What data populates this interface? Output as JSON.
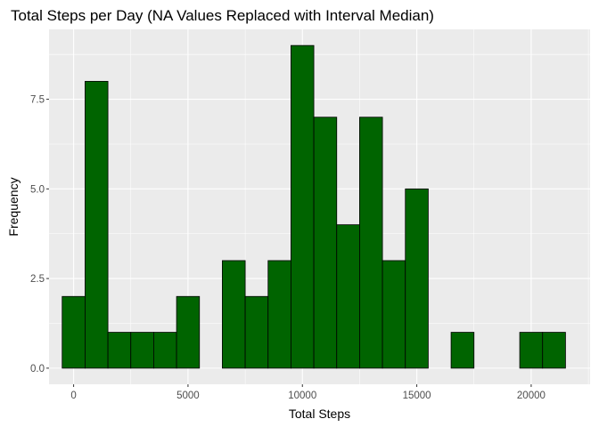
{
  "chart_data": {
    "type": "bar",
    "title": "Total Steps per Day (NA Values Replaced with Interval Median)",
    "xlabel": "Total Steps",
    "ylabel": "Frequency",
    "bin_width": 1000,
    "bins": [
      {
        "x": 0,
        "count": 2
      },
      {
        "x": 1000,
        "count": 8
      },
      {
        "x": 2000,
        "count": 1
      },
      {
        "x": 3000,
        "count": 1
      },
      {
        "x": 4000,
        "count": 1
      },
      {
        "x": 5000,
        "count": 2
      },
      {
        "x": 6000,
        "count": 0
      },
      {
        "x": 7000,
        "count": 3
      },
      {
        "x": 8000,
        "count": 2
      },
      {
        "x": 9000,
        "count": 3
      },
      {
        "x": 10000,
        "count": 9
      },
      {
        "x": 11000,
        "count": 7
      },
      {
        "x": 12000,
        "count": 4
      },
      {
        "x": 13000,
        "count": 7
      },
      {
        "x": 14000,
        "count": 3
      },
      {
        "x": 15000,
        "count": 5
      },
      {
        "x": 16000,
        "count": 0
      },
      {
        "x": 17000,
        "count": 1
      },
      {
        "x": 18000,
        "count": 0
      },
      {
        "x": 19000,
        "count": 0
      },
      {
        "x": 20000,
        "count": 1
      },
      {
        "x": 21000,
        "count": 1
      }
    ],
    "x_ticks": [
      0,
      5000,
      10000,
      15000,
      20000
    ],
    "x_tick_labels": [
      "0",
      "5000",
      "10000",
      "15000",
      "20000"
    ],
    "y_ticks": [
      0,
      2.5,
      5,
      7.5
    ],
    "y_tick_labels": [
      "0.0",
      "2.5",
      "5.0",
      "7.5"
    ],
    "xlim": [
      -1075,
      22575
    ],
    "ylim": [
      -0.45,
      9.45
    ],
    "grid": true,
    "colors": {
      "bar_fill": "#006400",
      "bar_outline": "#000000",
      "panel": "#ebebeb",
      "grid": "#ffffff"
    }
  }
}
